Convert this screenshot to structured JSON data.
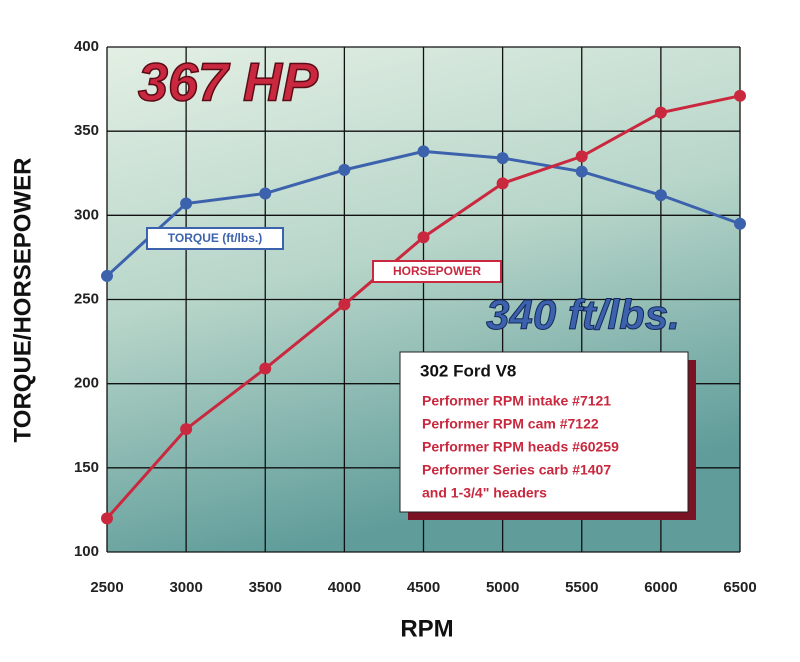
{
  "chart_data": {
    "type": "line",
    "x_label": "RPM",
    "y_label": "TORQUE/HORSEPOWER",
    "x": [
      2500,
      3000,
      3500,
      4000,
      4500,
      5000,
      5500,
      6000,
      6500
    ],
    "xlim": [
      2500,
      6500
    ],
    "xticks": [
      2500,
      3000,
      3500,
      4000,
      4500,
      5000,
      5500,
      6000,
      6500
    ],
    "ylim": [
      100,
      400
    ],
    "yticks": [
      100,
      150,
      200,
      250,
      300,
      350,
      400
    ],
    "grid": true,
    "series": [
      {
        "name": "TORQUE (ft/lbs.)",
        "color": "#3d62ad",
        "values": [
          264,
          307,
          313,
          327,
          338,
          334,
          326,
          312,
          295
        ]
      },
      {
        "name": "HORSEPOWER",
        "color": "#c9283e",
        "values": [
          120,
          173,
          209,
          247,
          287,
          319,
          335,
          361,
          371
        ]
      }
    ],
    "headline_hp": "367 HP",
    "headline_torque": "340 ft/lbs.",
    "spec_box": {
      "title": "302 Ford V8",
      "lines": [
        "Performer RPM intake #7121",
        "Performer RPM cam #7122",
        "Performer RPM heads #60259",
        "Performer Series carb #1407",
        "and 1-3/4\" headers"
      ]
    }
  }
}
